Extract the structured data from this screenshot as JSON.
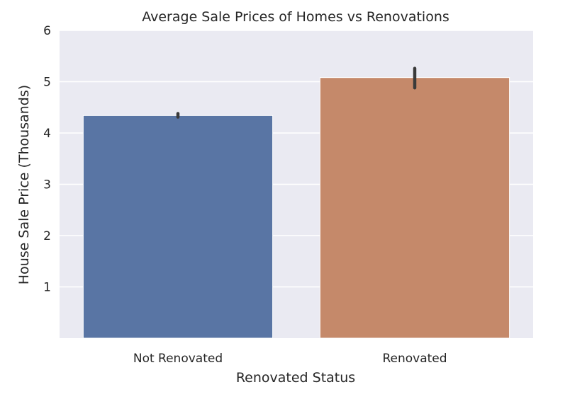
{
  "chart_data": {
    "type": "bar",
    "title": "Average Sale Prices of Homes vs Renovations",
    "xlabel": "Renovated Status",
    "ylabel": "House Sale Price (Thousands)",
    "categories": [
      "Not Renovated",
      "Renovated"
    ],
    "values": [
      4.34,
      5.08
    ],
    "error_bars": [
      {
        "low": 4.31,
        "high": 4.38
      },
      {
        "low": 4.88,
        "high": 5.26
      }
    ],
    "colors": [
      "#5975a4",
      "#c5896a"
    ],
    "ylim": [
      0,
      6
    ],
    "yticks": [
      1,
      2,
      3,
      4,
      5,
      6
    ],
    "grid": true,
    "background": "#eaeaf2",
    "errorbar_color": "#3a3a3a"
  }
}
